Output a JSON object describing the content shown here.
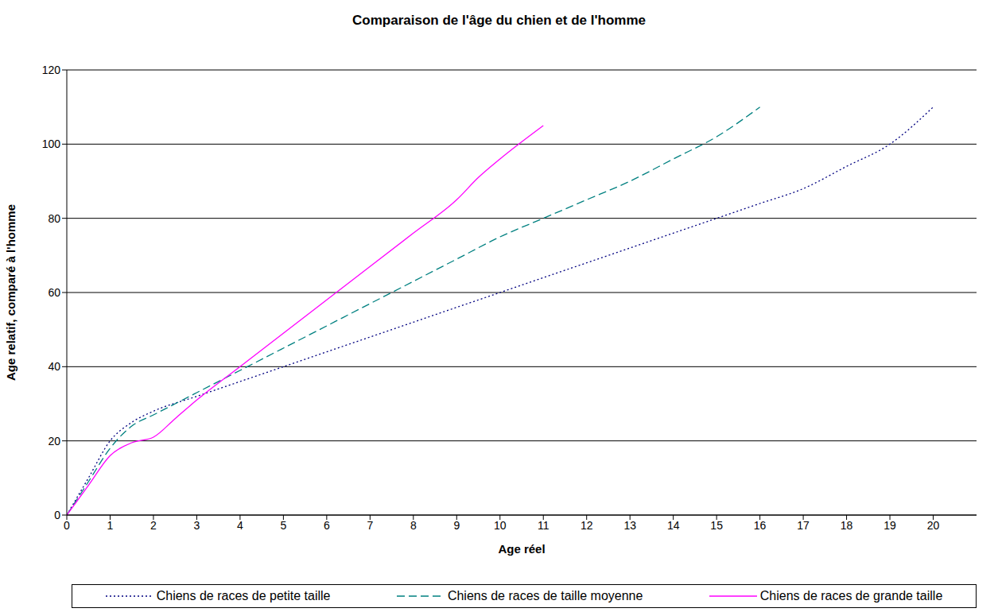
{
  "chart_data": {
    "type": "line",
    "title": "Comparaison de l'âge du chien et de l'homme",
    "x_label": "Age réel",
    "y_label": "Age relatif, comparé à l'homme",
    "xlim": [
      0,
      21
    ],
    "xticks": [
      0,
      1,
      2,
      3,
      4,
      5,
      6,
      7,
      8,
      9,
      10,
      11,
      12,
      13,
      14,
      15,
      16,
      17,
      18,
      19,
      20
    ],
    "ylim": [
      0,
      120
    ],
    "yticks": [
      0,
      20,
      40,
      60,
      80,
      100,
      120
    ],
    "grid": true,
    "legend": "bottom",
    "series": [
      {
        "name": "Chiens de races de petite taille",
        "color": "#000080",
        "line_style": "dotted",
        "x": [
          0,
          0.5,
          1,
          1.5,
          2,
          3,
          4,
          5,
          6,
          7,
          8,
          9,
          10,
          11,
          12,
          13,
          14,
          15,
          16,
          17,
          18,
          19,
          20
        ],
        "values": [
          0,
          10,
          20,
          25,
          28,
          32,
          36,
          40,
          44,
          48,
          52,
          56,
          60,
          64,
          68,
          72,
          76,
          80,
          84,
          88,
          94,
          100,
          110
        ]
      },
      {
        "name": "Chiens de races de taille moyenne",
        "color": "#008080",
        "line_style": "dashed",
        "x": [
          0,
          0.5,
          1,
          1.5,
          2,
          3,
          4,
          5,
          6,
          7,
          8,
          9,
          10,
          11,
          12,
          13,
          14,
          15,
          16
        ],
        "values": [
          0,
          9,
          18,
          24,
          27,
          33,
          39,
          45,
          51,
          57,
          63,
          69,
          75,
          80,
          85,
          90,
          96,
          102,
          110
        ]
      },
      {
        "name": "Chiens de races de grande taille",
        "color": "#ff00ff",
        "line_style": "solid",
        "x": [
          0,
          0.5,
          1,
          1.5,
          2,
          2.5,
          3,
          4,
          5,
          6,
          7,
          8,
          9,
          9.5,
          10,
          11
        ],
        "values": [
          0,
          8,
          16,
          19.5,
          21,
          26,
          31,
          40,
          49,
          58,
          67,
          76,
          85,
          91,
          96,
          105
        ]
      }
    ]
  }
}
